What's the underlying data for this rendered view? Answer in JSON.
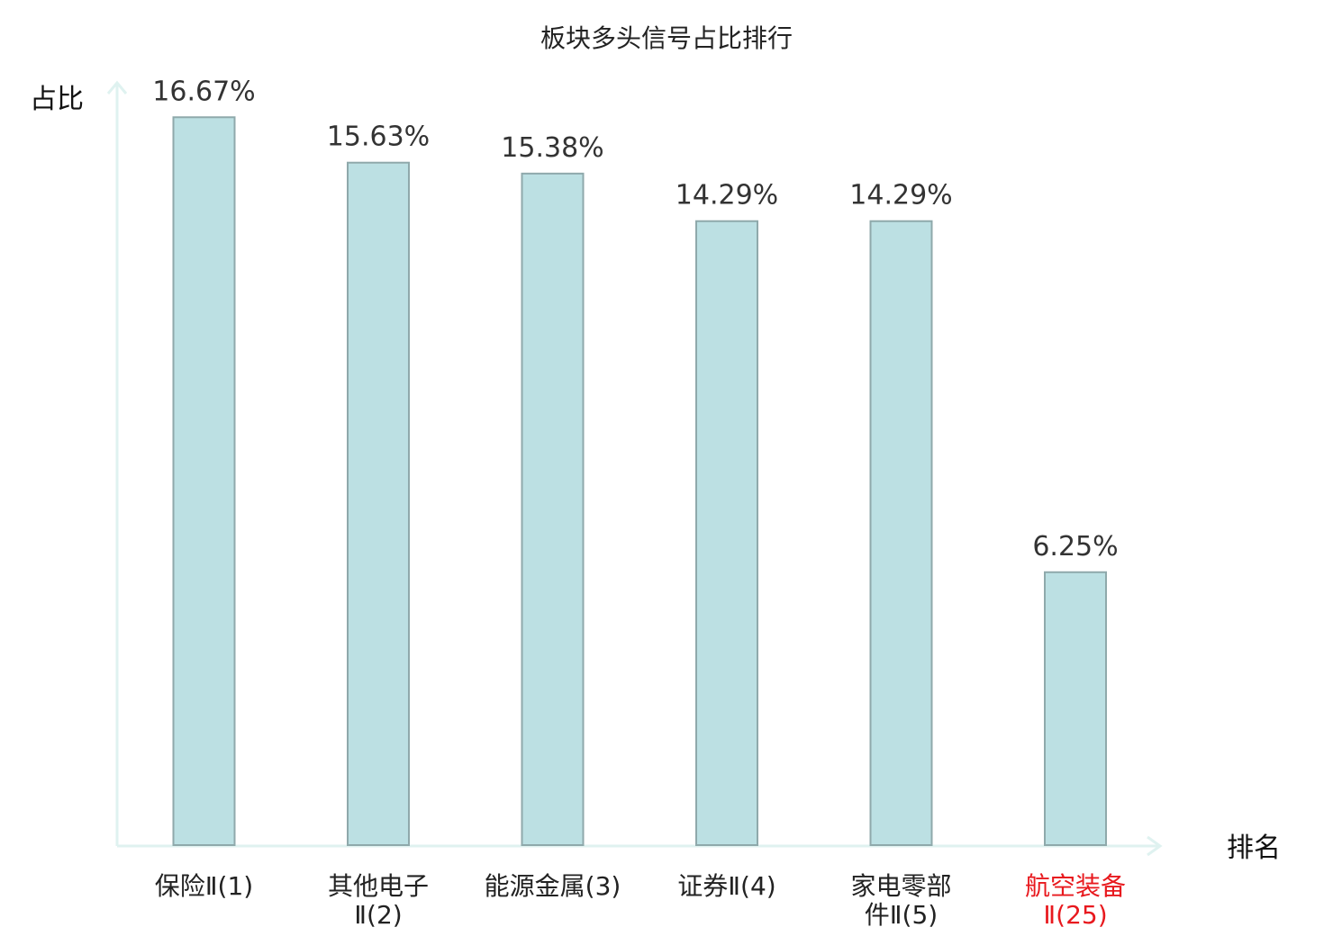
{
  "chart_data": {
    "type": "bar",
    "title": "板块多头信号占比排行",
    "ylabel": "占比",
    "xlabel": "排名",
    "ylim": [
      0,
      17.5
    ],
    "grid": false,
    "categories": [
      {
        "lines": [
          "保险Ⅱ(1)"
        ],
        "highlight": false
      },
      {
        "lines": [
          "其他电子",
          "Ⅱ(2)"
        ],
        "highlight": false
      },
      {
        "lines": [
          "能源金属(3)"
        ],
        "highlight": false
      },
      {
        "lines": [
          "证券Ⅱ(4)"
        ],
        "highlight": false
      },
      {
        "lines": [
          "家电零部",
          "件Ⅱ(5)"
        ],
        "highlight": false
      },
      {
        "lines": [
          "航空装备",
          "Ⅱ(25)"
        ],
        "highlight": true
      }
    ],
    "values": [
      16.67,
      15.63,
      15.38,
      14.29,
      14.29,
      6.25
    ],
    "value_labels": [
      "16.67%",
      "15.63%",
      "15.38%",
      "14.29%",
      "14.29%",
      "6.25%"
    ],
    "colors": {
      "bar_fill": "#bce0e3",
      "bar_stroke": "#8fa9ab",
      "axis": "#dff2f0",
      "label_normal": "#222222",
      "label_highlight": "#e8191e"
    }
  }
}
